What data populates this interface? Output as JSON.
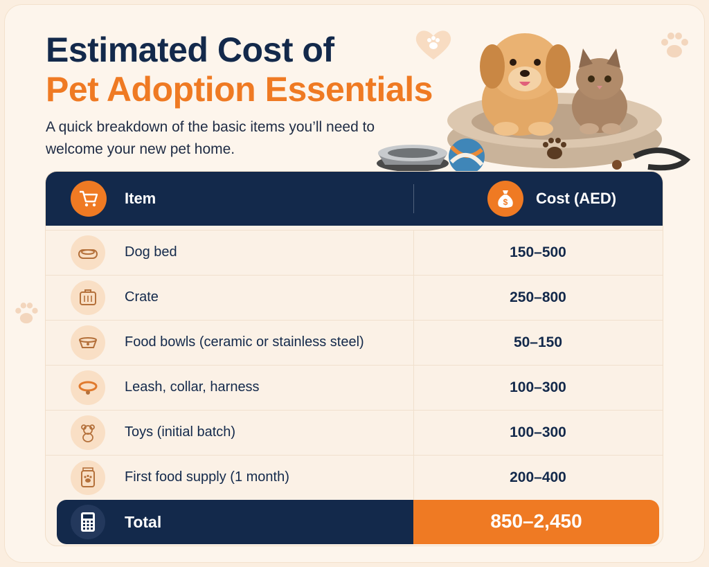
{
  "header": {
    "title_line1": "Estimated Cost of",
    "title_line2": "Pet Adoption Essentials",
    "subtitle": "A quick breakdown of the basic items you’ll need to welcome your new pet home."
  },
  "colors": {
    "navy": "#13294b",
    "orange": "#ef7a23",
    "background": "#fdf5ec",
    "icon_circle": "#f9dfc5"
  },
  "table": {
    "columns": [
      {
        "label": "Item",
        "icon": "shopping-cart-icon"
      },
      {
        "label": "Cost (AED)",
        "icon": "money-bag-icon"
      }
    ],
    "rows": [
      {
        "item": "Dog bed",
        "cost": "150–500",
        "icon": "dog-bed-icon"
      },
      {
        "item": "Crate",
        "cost": "250–800",
        "icon": "crate-icon"
      },
      {
        "item": "Food bowls (ceramic or stainless steel)",
        "cost": "50–150",
        "icon": "food-bowl-icon"
      },
      {
        "item": "Leash, collar, harness",
        "cost": "100–300",
        "icon": "collar-icon"
      },
      {
        "item": "Toys (initial batch)",
        "cost": "100–300",
        "icon": "teddy-bear-icon"
      },
      {
        "item": "First food supply (1 month)",
        "cost": "200–400",
        "icon": "food-bag-icon"
      }
    ],
    "total": {
      "label": "Total",
      "value": "850–2,450",
      "icon": "calculator-icon"
    }
  }
}
